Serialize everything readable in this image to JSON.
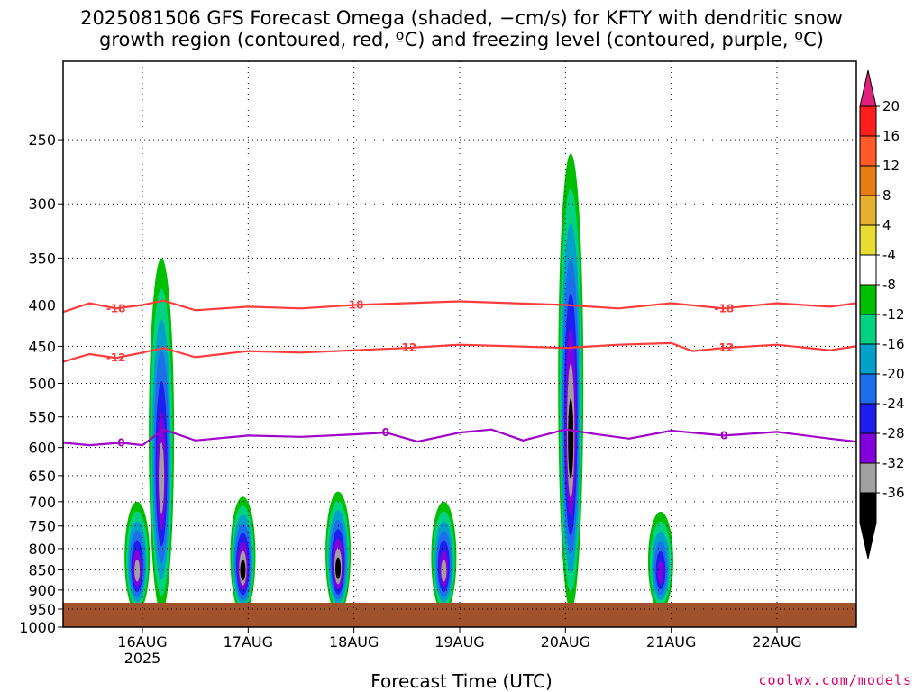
{
  "title_line1": "2025081506 GFS Forecast Omega (shaded, −cm/s) for KFTY with dendritic snow",
  "title_line2": "growth region (contoured, red, ºC) and freezing level (contoured, purple, ºC)",
  "xlabel": "Forecast Time (UTC)",
  "credit": "coolwx.com/models",
  "chart_data": {
    "type": "heatmap",
    "title": "2025081506 GFS Forecast Omega (shaded, −cm/s) for KFTY with dendritic snow growth region (contoured, red, ºC) and freezing level (contoured, purple, ºC)",
    "xlabel": "Forecast Time (UTC)",
    "ylabel": "",
    "x_ticks": [
      {
        "day": 16,
        "label": "16AUG",
        "sub": "2025"
      },
      {
        "day": 17,
        "label": "17AUG",
        "sub": ""
      },
      {
        "day": 18,
        "label": "18AUG",
        "sub": ""
      },
      {
        "day": 19,
        "label": "19AUG",
        "sub": ""
      },
      {
        "day": 20,
        "label": "20AUG",
        "sub": ""
      },
      {
        "day": 21,
        "label": "21AUG",
        "sub": ""
      },
      {
        "day": 22,
        "label": "22AUG",
        "sub": ""
      }
    ],
    "xlim": [
      15.25,
      22.75
    ],
    "y_ticks": [
      250,
      300,
      350,
      400,
      450,
      500,
      550,
      600,
      650,
      700,
      750,
      800,
      850,
      900,
      950,
      1000
    ],
    "ylim_hpa": [
      200,
      1000
    ],
    "y_scale": "log",
    "grid": true,
    "colorbar": {
      "labels": [
        "20",
        "16",
        "12",
        "8",
        "4",
        "-4",
        "-8",
        "-12",
        "-16",
        "-20",
        "-24",
        "-28",
        "-32",
        "-36"
      ],
      "colors": [
        "#ff1e1e",
        "#ff5a28",
        "#e67d14",
        "#e6af2d",
        "#e6dc32",
        "#ffffff",
        "#00be00",
        "#00d282",
        "#00a0c8",
        "#1e6eeb",
        "#1e1ef0",
        "#8200dc",
        "#a0a0a0",
        "#000000"
      ],
      "top_arrow_color": "#e0207a",
      "bottom_arrow_color": "#000000"
    },
    "omega_events": [
      {
        "day": 15.95,
        "top": 700,
        "bot": 960,
        "min": -30
      },
      {
        "day": 16.18,
        "top": 350,
        "bot": 960,
        "min": -30
      },
      {
        "day": 16.95,
        "top": 690,
        "bot": 965,
        "min": -36
      },
      {
        "day": 17.85,
        "top": 680,
        "bot": 965,
        "min": -36
      },
      {
        "day": 18.85,
        "top": 700,
        "bot": 960,
        "min": -28
      },
      {
        "day": 20.05,
        "top": 260,
        "bot": 955,
        "min": -36
      },
      {
        "day": 20.9,
        "top": 720,
        "bot": 955,
        "min": -24
      }
    ],
    "contours": [
      {
        "name": "-18",
        "color": "#ff3c3c",
        "label": "-18",
        "x": [
          15.25,
          15.5,
          15.75,
          16.0,
          16.2,
          16.5,
          17.0,
          17.5,
          18.0,
          18.5,
          19.0,
          19.5,
          20.0,
          20.5,
          21.0,
          21.5,
          22.0,
          22.5,
          22.75
        ],
        "p": [
          408,
          398,
          404,
          400,
          395,
          406,
          402,
          404,
          400,
          398,
          396,
          398,
          400,
          404,
          398,
          404,
          398,
          402,
          398
        ]
      },
      {
        "name": "-12",
        "color": "#ff3c3c",
        "label": "-12",
        "x": [
          15.25,
          15.5,
          15.75,
          16.0,
          16.2,
          16.5,
          17.0,
          17.5,
          18.0,
          18.5,
          19.0,
          19.5,
          20.0,
          20.5,
          21.0,
          21.2,
          21.5,
          22.0,
          22.5,
          22.75
        ],
        "p": [
          470,
          460,
          465,
          458,
          452,
          464,
          456,
          458,
          455,
          452,
          448,
          450,
          452,
          448,
          446,
          456,
          452,
          448,
          455,
          450
        ]
      },
      {
        "name": "0",
        "color": "#a000c8",
        "label": "0",
        "x": [
          15.25,
          15.5,
          15.8,
          16.0,
          16.2,
          16.5,
          17.0,
          17.5,
          18.0,
          18.3,
          18.6,
          19.0,
          19.3,
          19.6,
          20.0,
          20.3,
          20.6,
          21.0,
          21.5,
          22.0,
          22.5,
          22.75
        ],
        "p": [
          592,
          596,
          592,
          596,
          570,
          588,
          580,
          582,
          578,
          575,
          590,
          575,
          570,
          588,
          570,
          578,
          585,
          572,
          580,
          574,
          585,
          590
        ]
      }
    ]
  }
}
